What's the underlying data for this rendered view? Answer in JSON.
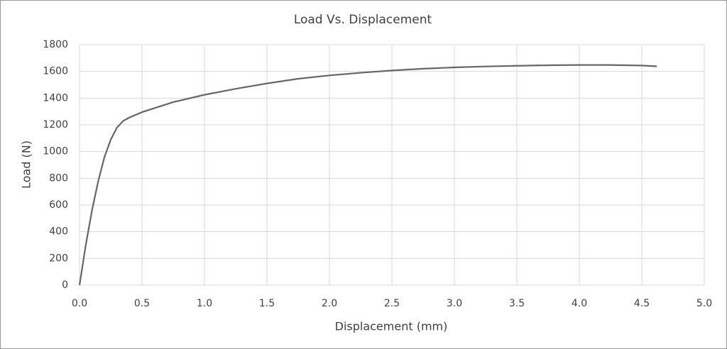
{
  "chart_data": {
    "type": "line",
    "title": "Load Vs. Displacement",
    "x_label": "Displacement (mm)",
    "y_label": "Load (N)",
    "x": [
      0,
      0.05,
      0.1,
      0.15,
      0.2,
      0.25,
      0.3,
      0.35,
      0.4,
      0.45,
      0.5,
      0.75,
      1.0,
      1.25,
      1.5,
      1.75,
      2.0,
      2.25,
      2.5,
      2.75,
      3.0,
      3.25,
      3.5,
      3.75,
      4.0,
      4.25,
      4.5,
      4.62
    ],
    "series": [
      {
        "color": "#666666",
        "values": [
          0,
          300,
          560,
          780,
          960,
          1090,
          1180,
          1230,
          1255,
          1275,
          1295,
          1370,
          1425,
          1470,
          1510,
          1545,
          1570,
          1590,
          1607,
          1620,
          1630,
          1637,
          1642,
          1646,
          1648,
          1648,
          1644,
          1638
        ]
      }
    ],
    "xlim": [
      0,
      5
    ],
    "ylim": [
      0,
      1800
    ],
    "xticks": [
      {
        "value": 0,
        "label": "0.0"
      },
      0.5,
      {
        "value": 1,
        "label": "1.0"
      },
      1.5,
      {
        "value": 2,
        "label": "2.0"
      },
      2.5,
      {
        "value": 3,
        "label": "3.0"
      },
      3.5,
      {
        "value": 4,
        "label": "4.0"
      },
      4.5,
      {
        "value": 5,
        "label": "5.0"
      }
    ],
    "yticks": [
      0,
      200,
      400,
      600,
      800,
      1000,
      1200,
      1400,
      1600,
      1800
    ],
    "grid": true
  }
}
